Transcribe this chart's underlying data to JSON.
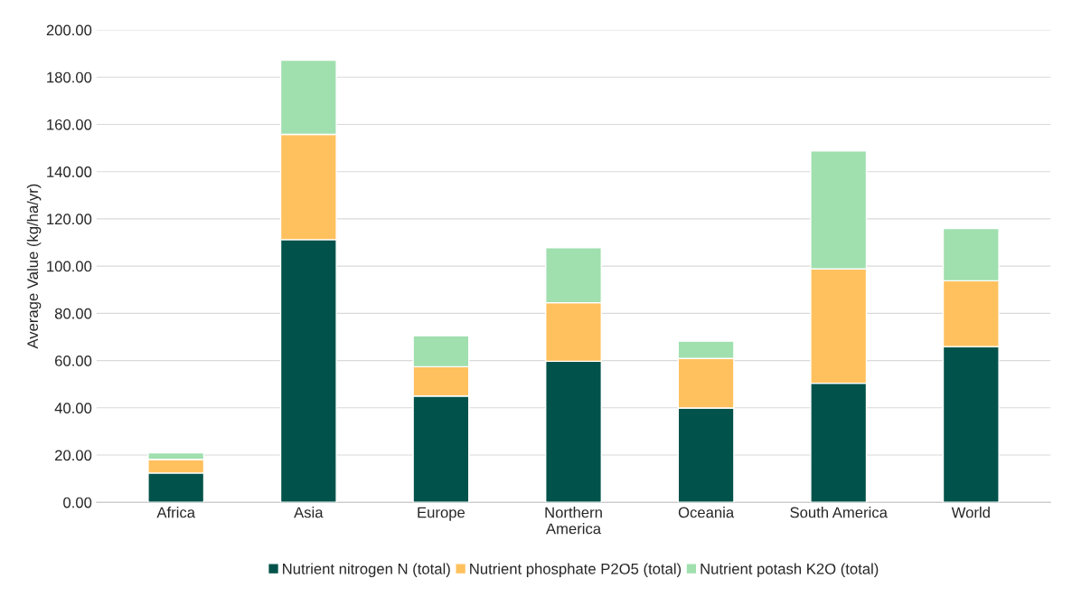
{
  "chart_data": {
    "type": "bar",
    "stacked": true,
    "ylabel": "Average Value (kg/ha/yr)",
    "categories": [
      "Africa",
      "Asia",
      "Europe",
      "Northern\nAmerica",
      "Oceania",
      "South America",
      "World"
    ],
    "series": [
      {
        "name": "Nutrient nitrogen N (total)",
        "color": "#00524a",
        "values": [
          12.4,
          111.2,
          45.0,
          59.7,
          39.9,
          50.4,
          65.9
        ]
      },
      {
        "name": "Nutrient phosphate P2O5 (total)",
        "color": "#ffc15e",
        "values": [
          5.8,
          44.6,
          12.4,
          24.8,
          21.0,
          48.4,
          27.9
        ]
      },
      {
        "name": "Nutrient potash K2O (total)",
        "color": "#a0dfae",
        "values": [
          2.7,
          31.4,
          13.1,
          23.3,
          7.3,
          50.0,
          22.1
        ]
      }
    ],
    "ylim": [
      0,
      200
    ],
    "yticks": [
      {
        "value": 0,
        "label": "0.00"
      },
      {
        "value": 20,
        "label": "20.00"
      },
      {
        "value": 40,
        "label": "40.00"
      },
      {
        "value": 60,
        "label": "60.00"
      },
      {
        "value": 80,
        "label": "80.00"
      },
      {
        "value": 100,
        "label": "100.00"
      },
      {
        "value": 120,
        "label": "120.00"
      },
      {
        "value": 140,
        "label": "140.00"
      },
      {
        "value": 160,
        "label": "160.00"
      },
      {
        "value": 180,
        "label": "180.00"
      },
      {
        "value": 200,
        "label": "200.00"
      }
    ],
    "grid": "y",
    "legend": "bottom"
  }
}
